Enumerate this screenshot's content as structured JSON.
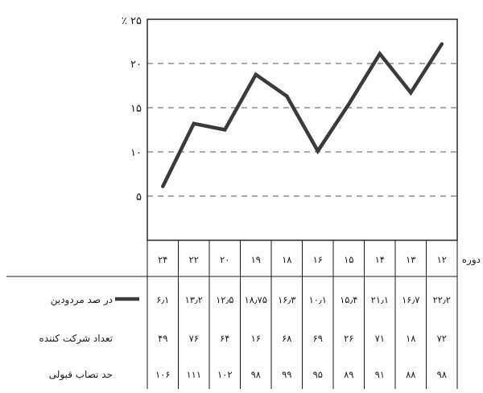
{
  "chart_data": {
    "type": "line",
    "y_unit_label": "٪ ۲۵",
    "yticks": [
      "۵",
      "۱۰",
      "۱۵",
      "۲۰"
    ],
    "ylim": [
      0,
      25
    ],
    "grid": true,
    "grid_style": "dashed",
    "x_axis_label": "دوره",
    "x": [
      "۱۲",
      "۱۳",
      "۱۴",
      "۱۵",
      "۱۶",
      "۱۸",
      "۱۹",
      "۲۰",
      "۲۲",
      "۲۴"
    ],
    "series": [
      {
        "name": "در صد مردودین",
        "color": "#3a3a3a",
        "values": [
          22.2,
          16.7,
          21.1,
          15.4,
          10.1,
          16.3,
          18.75,
          12.5,
          13.2,
          6.1
        ],
        "labels": [
          "۲۲٫۲",
          "۱۶٫۷",
          "۲۱٫۱",
          "۱۵٫۴",
          "۱۰٫۱",
          "۱۶٫۳",
          "۱۸٫۷۵",
          "۱۲٫۵",
          "۱۳٫۲",
          "۶٫۱"
        ]
      }
    ],
    "table_rows": [
      {
        "label": "تعداد شرکت کننده",
        "values": [
          "۷۲",
          "۱۸",
          "۷۱",
          "۲۶",
          "۶۹",
          "۶۸",
          "۱۶",
          "۶۴",
          "۷۶",
          "۴۹"
        ]
      },
      {
        "label": "حد نصاب قبولی",
        "values": [
          "۹۸",
          "۸۸",
          "۹۱",
          "۸۹",
          "۹۵",
          "۹۹",
          "۹۸",
          "۱۰۲",
          "۱۱۱",
          "۱۰۶"
        ]
      }
    ]
  }
}
